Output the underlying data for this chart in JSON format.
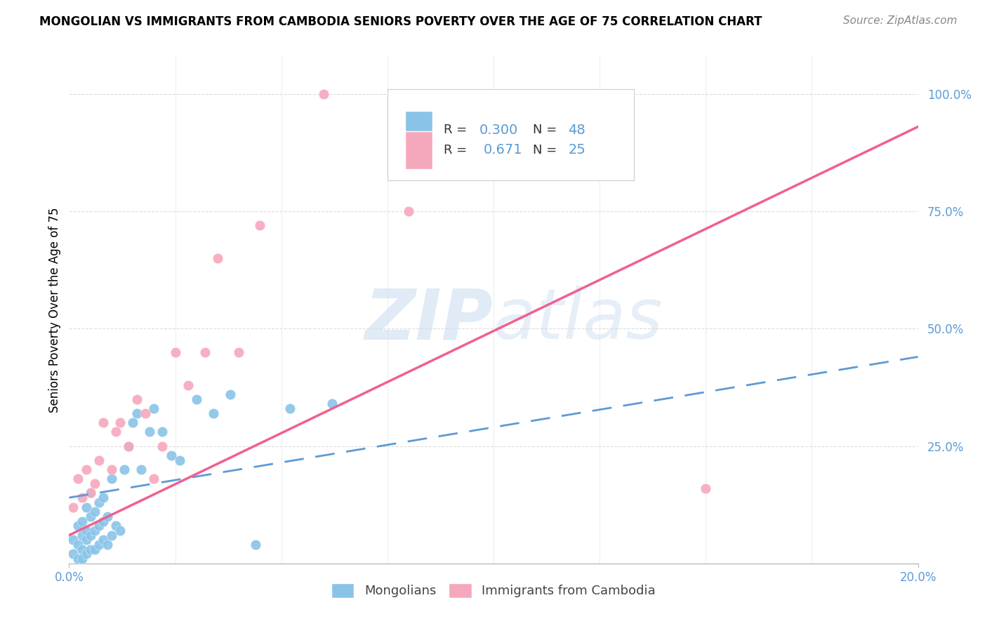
{
  "title": "MONGOLIAN VS IMMIGRANTS FROM CAMBODIA SENIORS POVERTY OVER THE AGE OF 75 CORRELATION CHART",
  "source": "Source: ZipAtlas.com",
  "ylabel": "Seniors Poverty Over the Age of 75",
  "xlim": [
    0.0,
    0.2
  ],
  "ylim": [
    0.0,
    1.08
  ],
  "blue_color": "#89C4E8",
  "pink_color": "#F5A8BC",
  "blue_line_color": "#5B9BD5",
  "pink_line_color": "#F06090",
  "watermark_color": "#C8DCEF",
  "background_color": "#FFFFFF",
  "grid_color": "#DDDDDD",
  "blue_scatter_x": [
    0.001,
    0.001,
    0.002,
    0.002,
    0.002,
    0.003,
    0.003,
    0.003,
    0.003,
    0.004,
    0.004,
    0.004,
    0.004,
    0.005,
    0.005,
    0.005,
    0.005,
    0.006,
    0.006,
    0.006,
    0.007,
    0.007,
    0.007,
    0.008,
    0.008,
    0.008,
    0.009,
    0.009,
    0.01,
    0.01,
    0.011,
    0.012,
    0.013,
    0.014,
    0.015,
    0.016,
    0.017,
    0.019,
    0.02,
    0.022,
    0.024,
    0.026,
    0.03,
    0.034,
    0.038,
    0.044,
    0.052,
    0.062
  ],
  "blue_scatter_y": [
    0.02,
    0.05,
    0.01,
    0.04,
    0.08,
    0.01,
    0.03,
    0.06,
    0.09,
    0.02,
    0.05,
    0.07,
    0.12,
    0.03,
    0.06,
    0.1,
    0.15,
    0.03,
    0.07,
    0.11,
    0.04,
    0.08,
    0.13,
    0.05,
    0.09,
    0.14,
    0.04,
    0.1,
    0.06,
    0.18,
    0.08,
    0.07,
    0.2,
    0.25,
    0.3,
    0.32,
    0.2,
    0.28,
    0.33,
    0.28,
    0.23,
    0.22,
    0.35,
    0.32,
    0.36,
    0.04,
    0.33,
    0.34
  ],
  "pink_scatter_x": [
    0.001,
    0.002,
    0.003,
    0.004,
    0.005,
    0.006,
    0.007,
    0.008,
    0.01,
    0.011,
    0.012,
    0.014,
    0.016,
    0.018,
    0.02,
    0.022,
    0.025,
    0.028,
    0.032,
    0.035,
    0.04,
    0.045,
    0.06,
    0.08,
    0.15
  ],
  "pink_scatter_y": [
    0.12,
    0.18,
    0.14,
    0.2,
    0.15,
    0.17,
    0.22,
    0.3,
    0.2,
    0.28,
    0.3,
    0.25,
    0.35,
    0.32,
    0.18,
    0.25,
    0.45,
    0.38,
    0.45,
    0.65,
    0.45,
    0.72,
    1.0,
    0.75,
    0.16
  ],
  "blue_line_x0": 0.0,
  "blue_line_y0": 0.14,
  "blue_line_x1": 0.2,
  "blue_line_y1": 0.44,
  "pink_line_x0": 0.0,
  "pink_line_y0": 0.06,
  "pink_line_x1": 0.2,
  "pink_line_y1": 0.93
}
